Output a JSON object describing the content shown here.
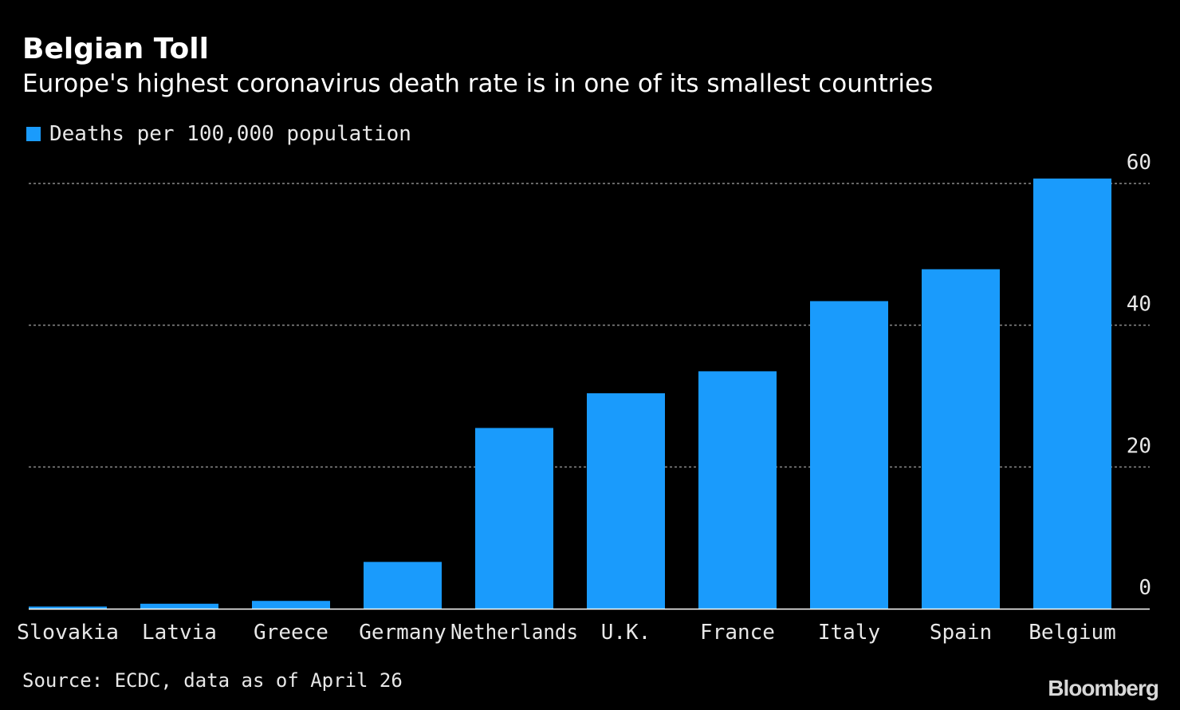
{
  "header": {
    "title": "Belgian Toll",
    "subtitle": "Europe's highest coronavirus death rate is in one of its smallest countries"
  },
  "legend": {
    "label": "Deaths per 100,000 population"
  },
  "footer": {
    "source": "Source: ECDC, data as of April 26",
    "brand": "Bloomberg"
  },
  "colors": {
    "bar": "#1a9bfc",
    "background": "#000000",
    "text": "#ffffff",
    "axis_text": "#e8e8e8",
    "grid": "#8a8a8a"
  },
  "chart_data": {
    "type": "bar",
    "categories": [
      "Slovakia",
      "Latvia",
      "Greece",
      "Germany",
      "Netherlands",
      "U.K.",
      "France",
      "Italy",
      "Spain",
      "Belgium"
    ],
    "series": [
      {
        "name": "Deaths per 100,000 population",
        "values": [
          0.3,
          0.7,
          1.1,
          6.6,
          25.5,
          30.4,
          33.5,
          43.4,
          47.9,
          60.7
        ]
      }
    ],
    "yticks": [
      0,
      20,
      40,
      60
    ],
    "ylim": [
      0,
      60
    ],
    "ylabel": "",
    "xlabel": "",
    "y_axis_side": "right",
    "grid": true,
    "grid_style": "dotted",
    "legend_position": "top-left"
  }
}
